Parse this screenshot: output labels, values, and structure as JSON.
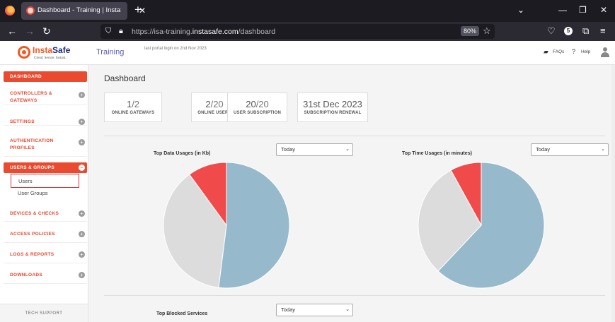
{
  "browser": {
    "tab_title": "Dashboard - Training | InstaSafe",
    "tab_close": "✕",
    "new_tab": "+",
    "url_prefix": "https://isa-training.",
    "url_domain": "instasafe.com",
    "url_path": "/dashboard",
    "zoom": "80%",
    "badge": "5",
    "icons": [
      "back-icon",
      "forward-icon",
      "reload-icon",
      "shield-icon",
      "lock-icon",
      "star-icon",
      "pocket-icon",
      "extensions-icon",
      "menu-icon"
    ]
  },
  "header": {
    "logo_insta": "Insta",
    "logo_safe": "Safe",
    "logo_tagline": "Cloud. Secure. Instant.",
    "app_title": "Training",
    "last_login": "last portal login on 2nd Nov 2023",
    "faqs": "FAQs",
    "help": "Help"
  },
  "sidebar": {
    "items": [
      {
        "label": "DASHBOARD"
      },
      {
        "label": "CONTROLLERS &",
        "label2": "GATEWAYS"
      },
      {
        "label": "SETTINGS"
      },
      {
        "label": "AUTHENTICATION",
        "label2": "PROFILES"
      },
      {
        "label": "USERS & GROUPS"
      },
      {
        "label": "DEVICES & CHECKS"
      },
      {
        "label": "ACCESS POLICIES"
      },
      {
        "label": "LOGS & REPORTS"
      },
      {
        "label": "DOWNLOADS"
      }
    ],
    "sub_items": [
      "Users",
      "User Groups"
    ],
    "tech_support": "TECH SUPPORT"
  },
  "main": {
    "title": "Dashboard",
    "stats": [
      {
        "numerator": "1",
        "denominator": "/2",
        "label": "ONLINE GATEWAYS"
      },
      {
        "numerator": "2",
        "denominator": "/20",
        "label": "ONLINE USERS"
      },
      {
        "numerator": "20",
        "denominator": "/20",
        "label": "USER SUBSCRIPTION"
      },
      {
        "numerator": "31st Dec 2023",
        "denominator": "",
        "label": "SUBSCRIPTION RENEWAL"
      }
    ],
    "charts": [
      {
        "title": "Top Data Usages (in Kb)",
        "select": "Today"
      },
      {
        "title": "Top Time Usages (in minutes)",
        "select": "Today"
      },
      {
        "title": "Top Blocked Services",
        "select": "Today"
      }
    ]
  },
  "colors": {
    "accent": "#ea4a2f",
    "pie_blue": "#97b9cc",
    "pie_gray": "#dcdcdc",
    "pie_red": "#f04a4a"
  },
  "chart_data": [
    {
      "type": "pie",
      "title": "Top Data Usages (in Kb)",
      "values": [
        0.52,
        0.38,
        0.1
      ],
      "colors": [
        "#97b9cc",
        "#dcdcdc",
        "#f04a4a"
      ]
    },
    {
      "type": "pie",
      "title": "Top Time Usages (in minutes)",
      "values": [
        0.62,
        0.3,
        0.08
      ],
      "colors": [
        "#97b9cc",
        "#dcdcdc",
        "#f04a4a"
      ]
    }
  ]
}
